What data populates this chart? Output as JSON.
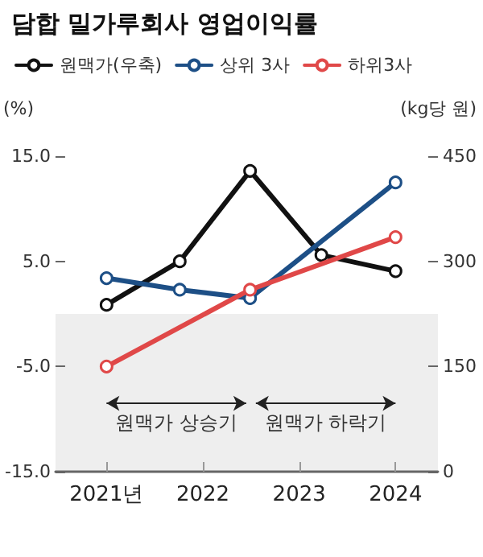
{
  "chart_data": {
    "type": "line",
    "title": "담합 밀가루회사 영업이익률",
    "ylabel": "(%)",
    "y2label": "(kg당 원)",
    "xlim": [
      2020.47,
      2024.44
    ],
    "xticks": [
      {
        "value": 2021,
        "label": "2021년"
      },
      2022,
      2023,
      2024
    ],
    "ylim": [
      -15,
      15
    ],
    "yticks": [
      {
        "value": -15,
        "label": "-15.0"
      },
      {
        "value": -5,
        "label": "-5.0"
      },
      {
        "value": 5,
        "label": "5.0"
      },
      {
        "value": 15,
        "label": "15.0"
      }
    ],
    "y2lim": [
      0,
      450
    ],
    "y2ticks": [
      0,
      150,
      300,
      450
    ],
    "series": [
      {
        "name": "원맥가(우축)",
        "color": "#111111",
        "axis": "y2",
        "x": [
          2021,
          2021.76,
          2022.49,
          2023.23,
          2024
        ],
        "values": [
          238,
          300,
          429,
          309,
          286
        ]
      },
      {
        "name": "상위 3사",
        "color": "#1d4f86",
        "x": [
          2021,
          2021.76,
          2022.49,
          2024
        ],
        "values": [
          3.4,
          2.3,
          1.5,
          12.5
        ]
      },
      {
        "name": "하위3사",
        "color": "#e04848",
        "x": [
          2021,
          2022.49,
          2024
        ],
        "values": [
          -5,
          2.3,
          7.3
        ]
      }
    ],
    "bands": [
      {
        "axis": "y",
        "from": -15,
        "to": 0,
        "color": "#eeeeee"
      }
    ],
    "annotations": [
      "원맥가 상승기",
      "원맥가 하락기"
    ],
    "marker": "circle",
    "line_style": "solid",
    "legend": "top left",
    "grid": false
  }
}
